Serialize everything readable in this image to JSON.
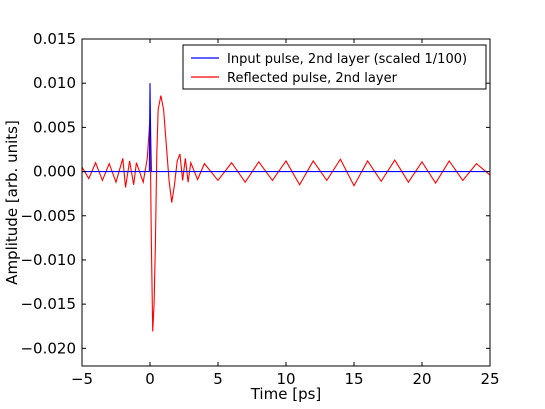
{
  "chart_data": {
    "type": "line",
    "xlabel": "Time [ps]",
    "ylabel": "Amplitude [arb. units]",
    "xlim": [
      -5,
      25
    ],
    "ylim": [
      -0.022,
      0.015
    ],
    "x_ticks": [
      -5,
      0,
      5,
      10,
      15,
      20,
      25
    ],
    "y_ticks": [
      0.015,
      0.01,
      0.005,
      0.0,
      -0.005,
      -0.01,
      -0.015,
      -0.02
    ],
    "x_tick_labels": [
      "−5",
      "0",
      "5",
      "10",
      "15",
      "20",
      "25"
    ],
    "y_tick_labels": [
      "0.015",
      "0.010",
      "0.005",
      "0.000",
      "−0.005",
      "−0.010",
      "−0.015",
      "−0.020"
    ],
    "grid": false,
    "legend_position": "top-right",
    "series": [
      {
        "name": "Input pulse, 2nd layer (scaled 1/100)",
        "color": "#0000ff",
        "x": [
          -5,
          -0.05,
          0.0,
          0.05,
          0.1,
          0.2,
          2.0,
          25
        ],
        "y": [
          0.0,
          0.0,
          0.01,
          0.004,
          0.0,
          0.0,
          0.0,
          0.0
        ]
      },
      {
        "name": "Reflected pulse, 2nd layer",
        "color": "#ff0000",
        "x": [
          -5.0,
          -4.5,
          -4.0,
          -3.5,
          -3.0,
          -2.5,
          -2.0,
          -1.8,
          -1.5,
          -1.2,
          -1.0,
          -0.5,
          -0.2,
          0.0,
          0.1,
          0.2,
          0.3,
          0.4,
          0.5,
          0.6,
          0.8,
          1.0,
          1.2,
          1.4,
          1.6,
          1.8,
          2.0,
          2.2,
          2.4,
          2.6,
          2.8,
          3.0,
          3.5,
          4.0,
          5.0,
          6.0,
          7.0,
          8.0,
          9.0,
          10.0,
          11.0,
          12.0,
          13.0,
          14.0,
          15.0,
          16.0,
          17.0,
          18.0,
          19.0,
          20.0,
          21.0,
          22.0,
          23.0,
          24.0,
          25.0
        ],
        "y": [
          0.0005,
          -0.0008,
          0.001,
          -0.001,
          0.0009,
          -0.0012,
          0.0015,
          -0.0018,
          0.0012,
          -0.0015,
          0.001,
          -0.0012,
          0.0015,
          0.006,
          -0.008,
          -0.0181,
          -0.015,
          -0.008,
          0.002,
          0.007,
          0.0086,
          0.007,
          0.003,
          -0.001,
          -0.0035,
          -0.0015,
          0.0012,
          0.002,
          -0.001,
          0.0015,
          -0.0012,
          0.001,
          -0.0009,
          0.0009,
          -0.001,
          0.001,
          -0.0012,
          0.0011,
          -0.001,
          0.0012,
          -0.0015,
          0.0012,
          -0.001,
          0.0014,
          -0.0016,
          0.0012,
          -0.0011,
          0.0013,
          -0.0012,
          0.0011,
          -0.0013,
          0.0012,
          -0.001,
          0.0009,
          -0.0004
        ]
      }
    ]
  }
}
